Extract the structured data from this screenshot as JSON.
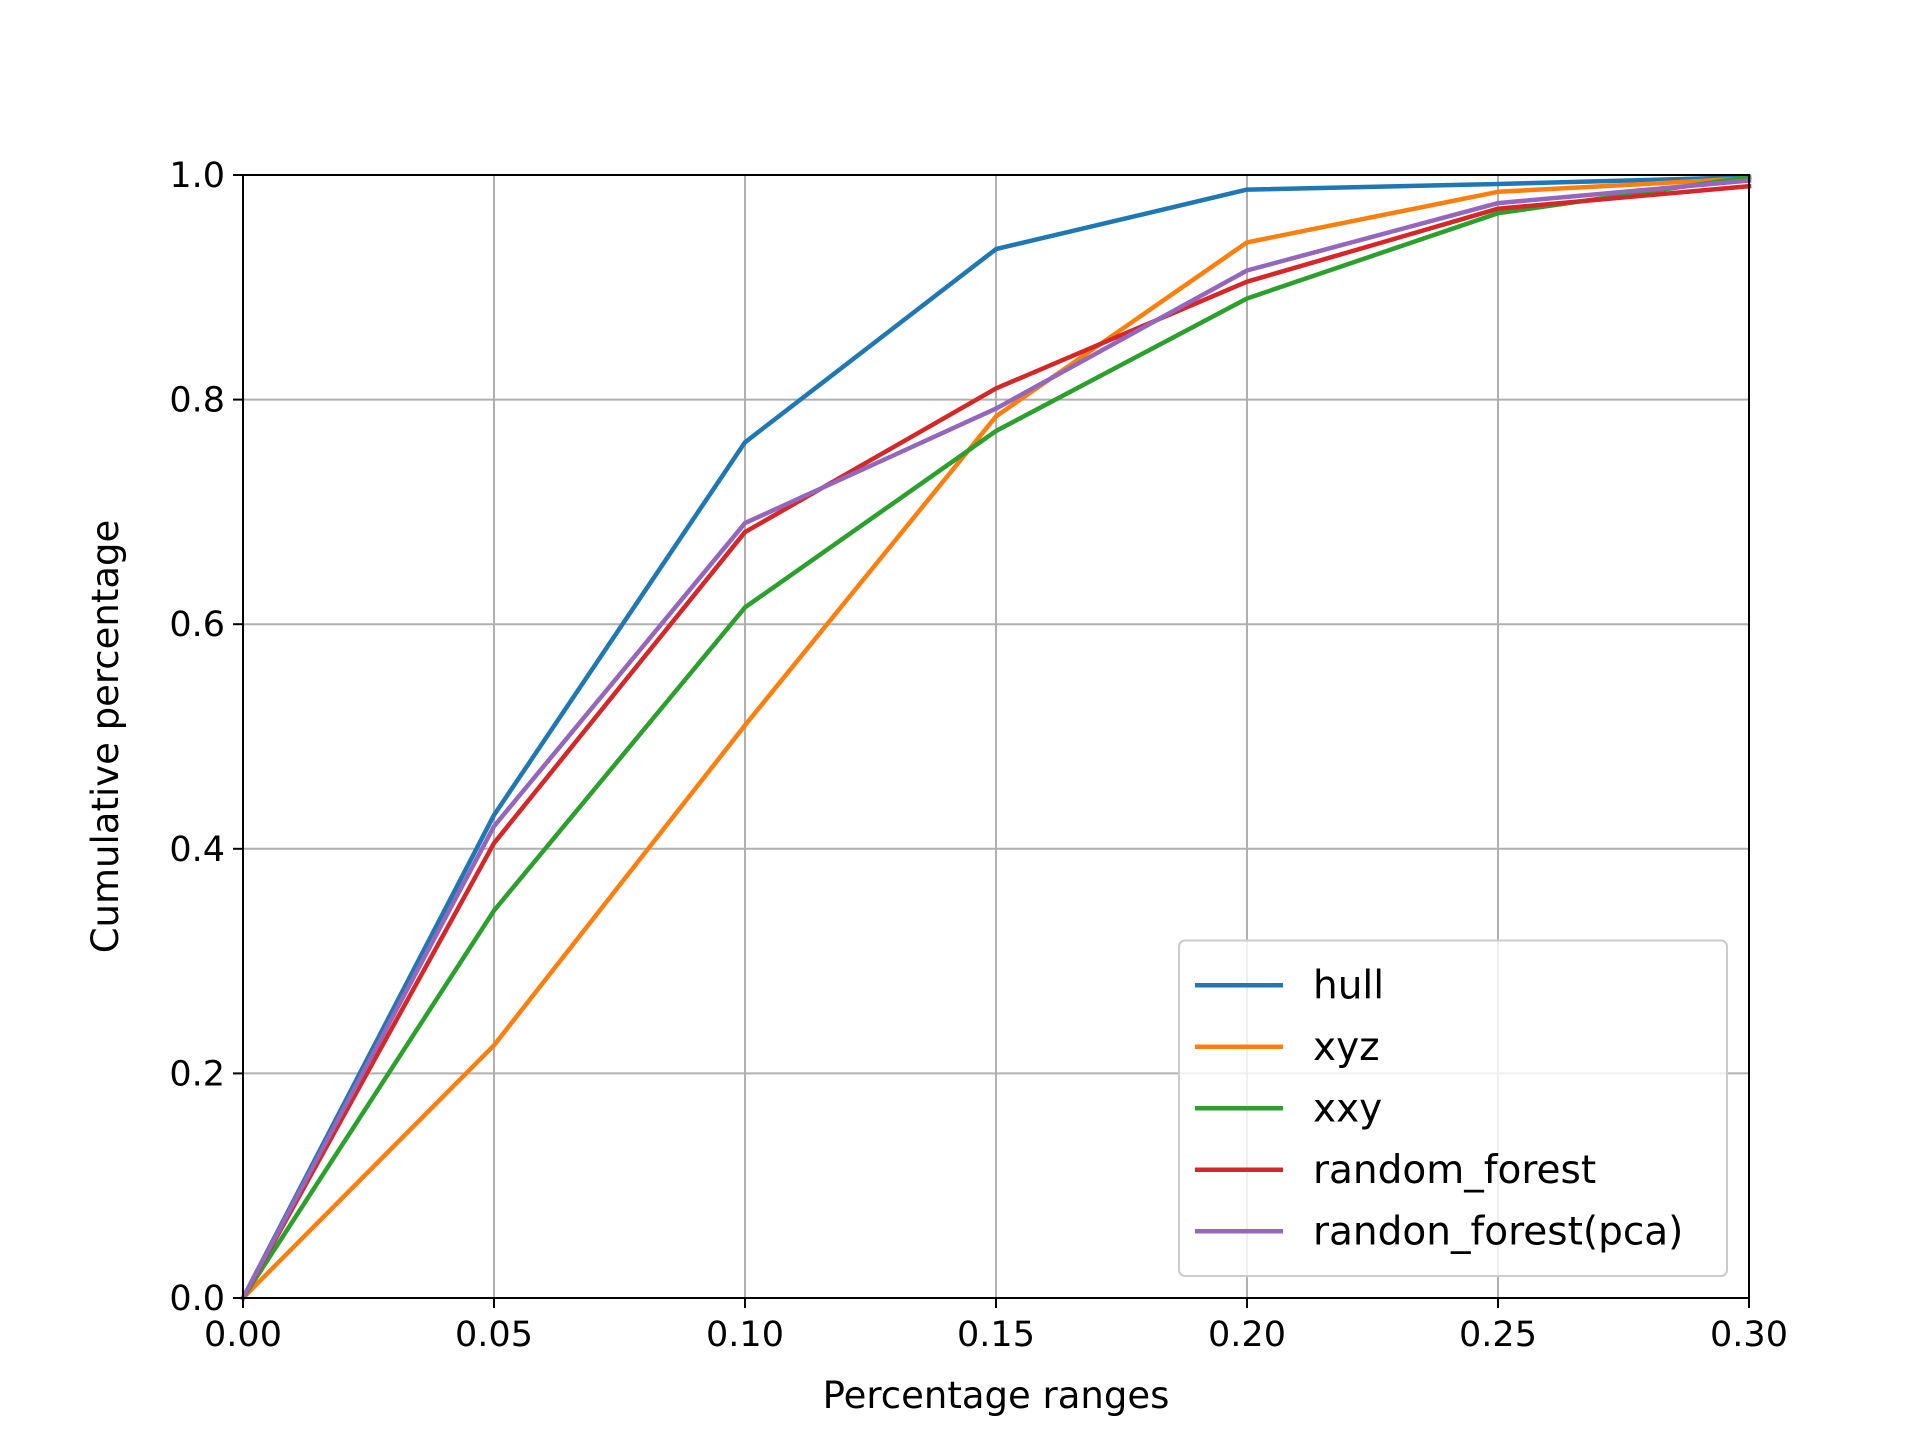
{
  "chart_data": {
    "type": "line",
    "title": "",
    "xlabel": "Percentage ranges",
    "ylabel": "Cumulative percentage",
    "xlim": [
      0,
      0.3
    ],
    "ylim": [
      0,
      1
    ],
    "x_ticks": [
      "0.00",
      "0.05",
      "0.10",
      "0.15",
      "0.20",
      "0.25",
      "0.30"
    ],
    "y_ticks": [
      "0.0",
      "0.2",
      "0.4",
      "0.6",
      "0.8",
      "1.0"
    ],
    "grid": true,
    "legend_position": "lower-right",
    "x": [
      0,
      0.05,
      0.1,
      0.15,
      0.2,
      0.25,
      0.3
    ],
    "series": [
      {
        "name": "hull",
        "color": "#1f77b4",
        "values": [
          0,
          0.43,
          0.762,
          0.934,
          0.987,
          0.992,
          0.998
        ]
      },
      {
        "name": "xyz",
        "color": "#ff7f0e",
        "values": [
          0,
          0.225,
          0.51,
          0.785,
          0.94,
          0.985,
          0.997
        ]
      },
      {
        "name": "xxy",
        "color": "#2ca02c",
        "values": [
          0,
          0.345,
          0.615,
          0.772,
          0.89,
          0.966,
          0.998
        ]
      },
      {
        "name": "random_forest",
        "color": "#d62728",
        "values": [
          0,
          0.405,
          0.682,
          0.81,
          0.905,
          0.97,
          0.99
        ]
      },
      {
        "name": "randon_forest(pca)",
        "color": "#9467bd",
        "values": [
          0,
          0.42,
          0.69,
          0.792,
          0.915,
          0.975,
          0.995
        ]
      }
    ]
  }
}
